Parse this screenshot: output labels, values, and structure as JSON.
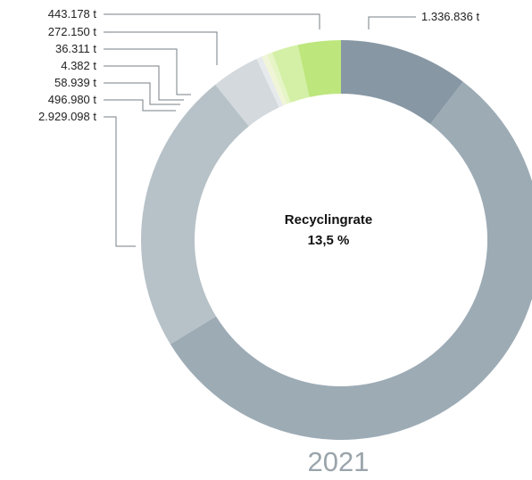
{
  "chart_data": {
    "type": "pie",
    "variant": "donut",
    "center_label": "Recyclingrate",
    "center_value": "13,5 %",
    "year": "2021",
    "slices": [
      {
        "value": 1336836,
        "label": "1.336.836 t",
        "color": "#8797a4"
      },
      {
        "value": 7138096,
        "label": "",
        "color": "#9dabb5"
      },
      {
        "value": 2929098,
        "label": "2.929.098 t",
        "color": "#b7c2c8"
      },
      {
        "value": 496980,
        "label": "496.980 t",
        "color": "#d3d9dd"
      },
      {
        "value": 58939,
        "label": "58.939 t",
        "color": "#e6eaec"
      },
      {
        "value": 4382,
        "label": "4.382 t",
        "color": "#f0f5d8"
      },
      {
        "value": 36311,
        "label": "36.311 t",
        "color": "#e6f5c6"
      },
      {
        "value": 272150,
        "label": "272.150 t",
        "color": "#d4f0a6"
      },
      {
        "value": 443178,
        "label": "443.178 t",
        "color": "#bde67d"
      }
    ]
  }
}
